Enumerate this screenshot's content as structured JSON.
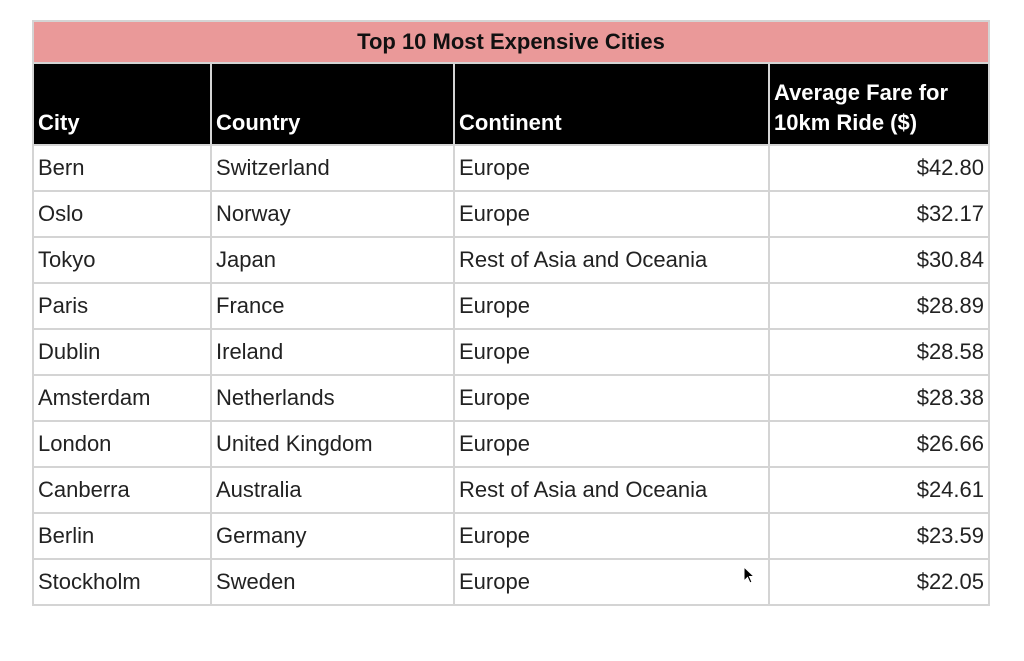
{
  "title": "Top 10 Most Expensive Cities",
  "table": {
    "columns": [
      "City",
      "Country",
      "Continent",
      "Average Fare for 10km Ride ($)"
    ],
    "rows": [
      [
        "Bern",
        "Switzerland",
        "Europe",
        "$42.80"
      ],
      [
        "Oslo",
        "Norway",
        "Europe",
        "$32.17"
      ],
      [
        "Tokyo",
        "Japan",
        "Rest of Asia and Oceania",
        "$30.84"
      ],
      [
        "Paris",
        "France",
        "Europe",
        "$28.89"
      ],
      [
        "Dublin",
        "Ireland",
        "Europe",
        "$28.58"
      ],
      [
        "Amsterdam",
        "Netherlands",
        "Europe",
        "$28.38"
      ],
      [
        "London",
        "United Kingdom",
        "Europe",
        "$26.66"
      ],
      [
        "Canberra",
        "Australia",
        "Rest of Asia and Oceania",
        "$24.61"
      ],
      [
        "Berlin",
        "Germany",
        "Europe",
        "$23.59"
      ],
      [
        "Stockholm",
        "Sweden",
        "Europe",
        "$22.05"
      ]
    ]
  }
}
